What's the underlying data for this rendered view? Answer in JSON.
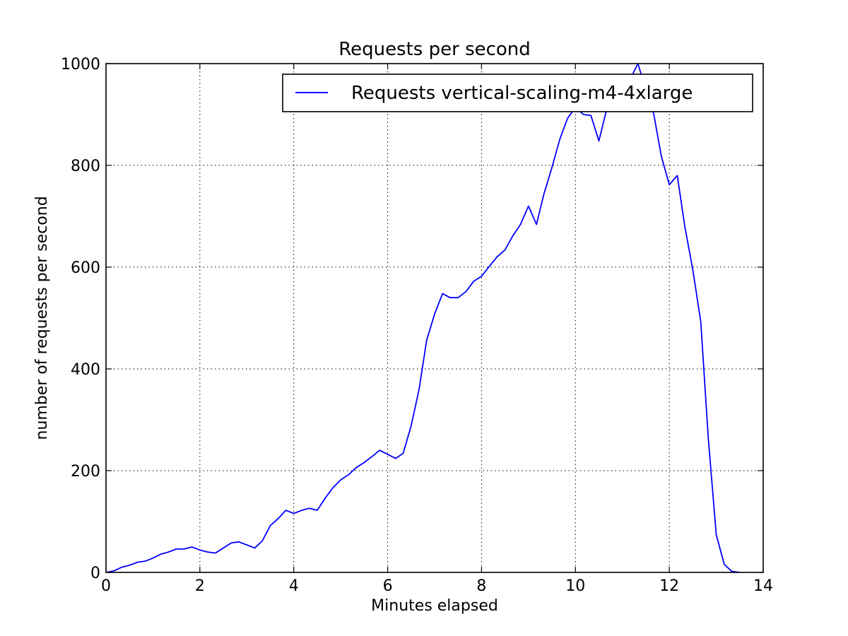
{
  "chart_data": {
    "type": "line",
    "title": "Requests per second",
    "xlabel": "Minutes elapsed",
    "ylabel": "number of requests per second",
    "xlim": [
      0,
      14
    ],
    "ylim": [
      0,
      1000
    ],
    "xticks": [
      0,
      2,
      4,
      6,
      8,
      10,
      12,
      14
    ],
    "yticks": [
      0,
      200,
      400,
      600,
      800,
      1000
    ],
    "grid": true,
    "legend_position": "upper right",
    "series": [
      {
        "name": "Requests vertical-scaling-m4-4xlarge",
        "color": "#0000ff",
        "x": [
          0,
          0.17,
          0.33,
          0.5,
          0.67,
          0.83,
          1.0,
          1.17,
          1.33,
          1.5,
          1.67,
          1.83,
          2.0,
          2.17,
          2.33,
          2.5,
          2.67,
          2.83,
          3.0,
          3.17,
          3.33,
          3.5,
          3.67,
          3.83,
          4.0,
          4.17,
          4.33,
          4.5,
          4.67,
          4.83,
          5.0,
          5.17,
          5.33,
          5.5,
          5.67,
          5.83,
          6.0,
          6.17,
          6.33,
          6.5,
          6.67,
          6.83,
          7.0,
          7.17,
          7.33,
          7.5,
          7.67,
          7.83,
          8.0,
          8.17,
          8.33,
          8.5,
          8.67,
          8.83,
          9.0,
          9.17,
          9.33,
          9.5,
          9.67,
          9.83,
          10.0,
          10.17,
          10.33,
          10.5,
          10.67,
          10.83,
          11.0,
          11.17,
          11.33,
          11.5,
          11.67,
          11.83,
          12.0,
          12.17,
          12.33,
          12.5,
          12.67,
          12.83,
          13.0,
          13.17,
          13.33,
          13.5
        ],
        "y": [
          0,
          3,
          10,
          14,
          20,
          22,
          28,
          36,
          40,
          46,
          46,
          50,
          44,
          40,
          38,
          48,
          58,
          60,
          54,
          48,
          62,
          92,
          106,
          122,
          116,
          122,
          126,
          122,
          146,
          166,
          182,
          192,
          206,
          216,
          228,
          240,
          232,
          224,
          234,
          288,
          360,
          456,
          508,
          548,
          540,
          540,
          552,
          572,
          582,
          602,
          620,
          634,
          662,
          684,
          720,
          684,
          744,
          796,
          852,
          892,
          914,
          900,
          898,
          848,
          912,
          932,
          956,
          970,
          1000,
          950,
          900,
          818,
          762,
          780,
          680,
          595,
          493,
          264,
          74,
          16,
          2,
          0
        ]
      }
    ]
  }
}
